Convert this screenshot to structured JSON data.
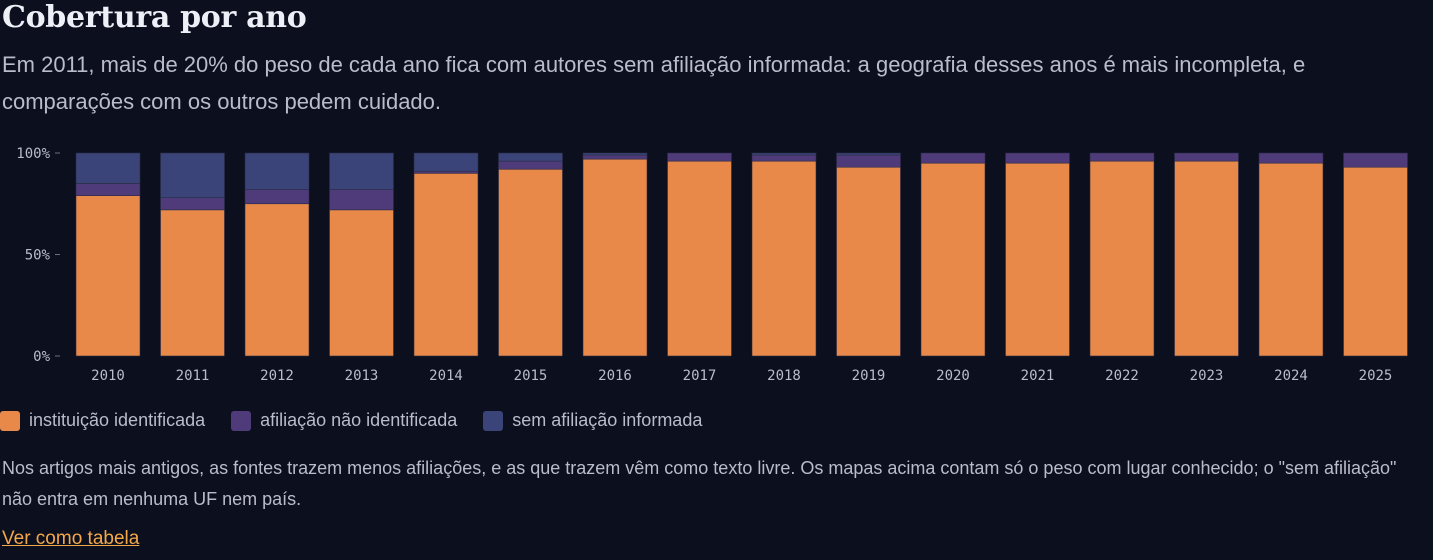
{
  "page": {
    "title": "Cobertura por ano",
    "subtitle": "Em 2011, mais de 20% do peso de cada ano fica com autores sem afiliação informada: a geografia desses anos é mais incompleta, e comparações com os outros pedem cuidado.",
    "note": "Nos artigos mais antigos, as fontes trazem menos afiliações, e as que trazem vêm como texto livre. Os mapas acima contam só o peso com lugar conhecido; o \"sem afiliação\" não entra em nenhuma UF nem país.",
    "table_link": "Ver como tabela"
  },
  "legend": [
    {
      "label": "instituição identificada",
      "color": "#e8894a"
    },
    {
      "label": "afiliação não identificada",
      "color": "#4f3b7a"
    },
    {
      "label": "sem afiliação informada",
      "color": "#3a4478"
    }
  ],
  "chart_data": {
    "type": "bar",
    "stacked": true,
    "categories": [
      "2010",
      "2011",
      "2012",
      "2013",
      "2014",
      "2015",
      "2016",
      "2017",
      "2018",
      "2019",
      "2020",
      "2021",
      "2022",
      "2023",
      "2024",
      "2025"
    ],
    "series": [
      {
        "name": "instituição identificada",
        "color": "#e8894a",
        "values": [
          79,
          72,
          75,
          72,
          90,
          92,
          97,
          96,
          96,
          93,
          95,
          95,
          96,
          96,
          95,
          93
        ]
      },
      {
        "name": "afiliação não identificada",
        "color": "#4f3b7a",
        "values": [
          6,
          6,
          7,
          10,
          1,
          4,
          2,
          4,
          3,
          6,
          5,
          5,
          4,
          4,
          5,
          7
        ]
      },
      {
        "name": "sem afiliação informada",
        "color": "#3a4478",
        "values": [
          15,
          22,
          18,
          18,
          9,
          4,
          1,
          0,
          1,
          1,
          0,
          0,
          0,
          0,
          0,
          0
        ]
      }
    ],
    "yticks": [
      "100%",
      "50%",
      "0%"
    ],
    "ylim": [
      0,
      100
    ],
    "legend_position": "bottom-left"
  }
}
